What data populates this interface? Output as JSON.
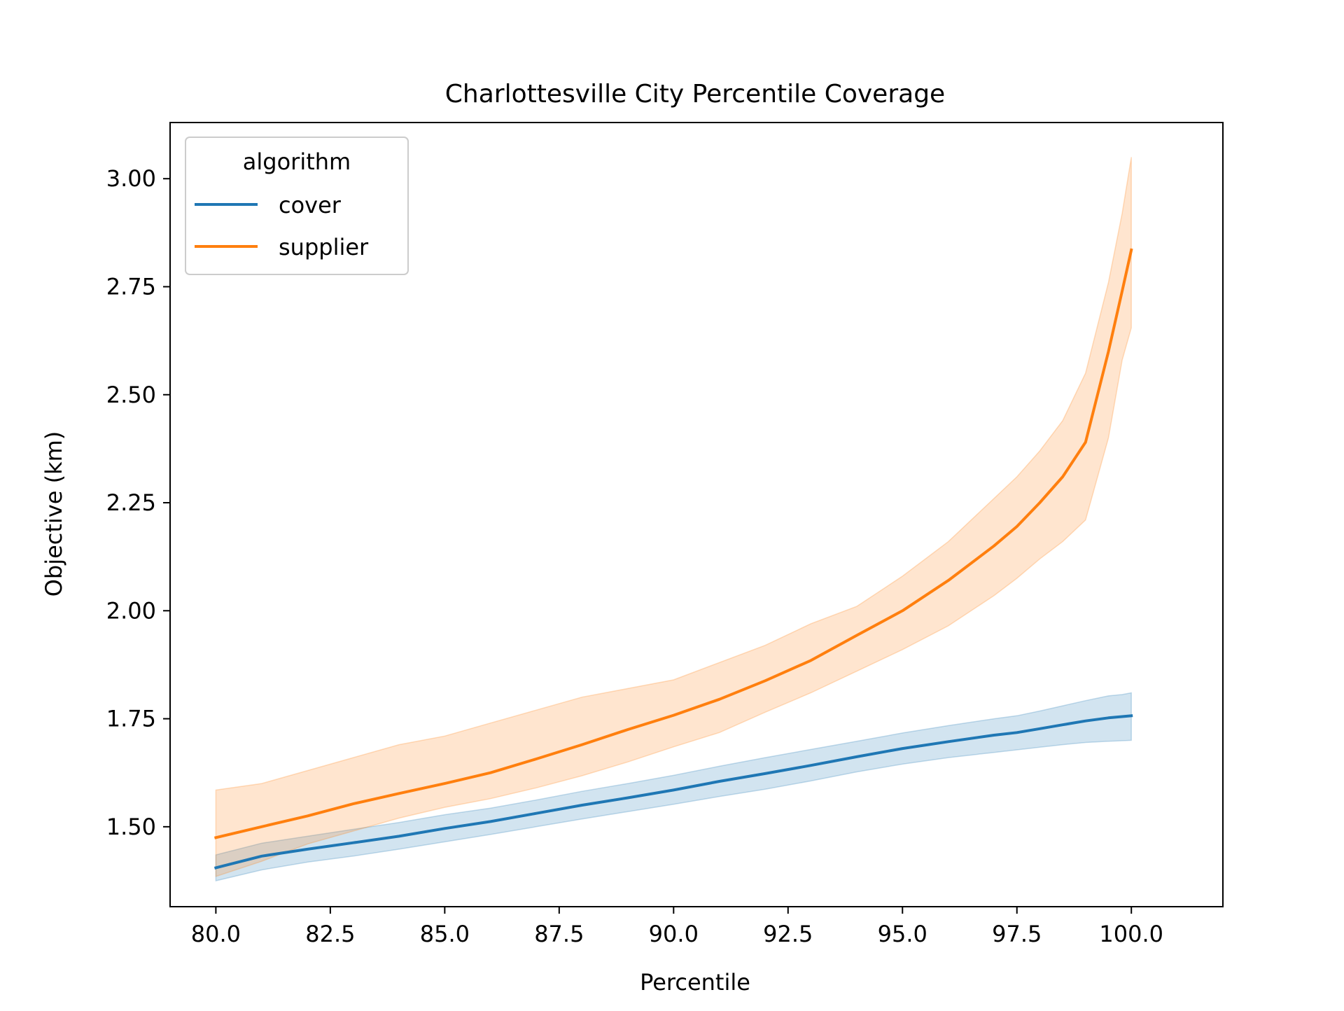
{
  "chart_data": {
    "type": "line",
    "title": "Charlottesville City Percentile Coverage",
    "xlabel": "Percentile",
    "ylabel": "Objective (km)",
    "xlim": [
      79.0,
      102.0
    ],
    "ylim": [
      1.315,
      3.13
    ],
    "xticks": [
      80.0,
      82.5,
      85.0,
      87.5,
      90.0,
      92.5,
      95.0,
      97.5,
      100.0
    ],
    "xtick_labels": [
      "80.0",
      "82.5",
      "85.0",
      "87.5",
      "90.0",
      "92.5",
      "95.0",
      "97.5",
      "100.0"
    ],
    "yticks": [
      1.5,
      1.75,
      2.0,
      2.25,
      2.5,
      2.75,
      3.0
    ],
    "ytick_labels": [
      "1.50",
      "1.75",
      "2.00",
      "2.25",
      "2.50",
      "2.75",
      "3.00"
    ],
    "grid": false,
    "legend": {
      "title": "algorithm",
      "placement": "top-left"
    },
    "x": [
      80,
      81,
      82,
      83,
      84,
      85,
      86,
      87,
      88,
      89,
      90,
      91,
      92,
      93,
      94,
      95,
      96,
      97,
      97.5,
      98,
      98.5,
      99,
      99.5,
      99.8,
      100
    ],
    "series": [
      {
        "name": "cover",
        "color": "#1f77b4",
        "values": [
          1.405,
          1.432,
          1.448,
          1.463,
          1.478,
          1.496,
          1.512,
          1.531,
          1.55,
          1.567,
          1.585,
          1.605,
          1.623,
          1.642,
          1.662,
          1.681,
          1.697,
          1.712,
          1.718,
          1.727,
          1.736,
          1.745,
          1.752,
          1.755,
          1.757
        ],
        "lower": [
          1.375,
          1.4,
          1.418,
          1.432,
          1.448,
          1.465,
          1.482,
          1.5,
          1.518,
          1.535,
          1.552,
          1.57,
          1.587,
          1.606,
          1.627,
          1.645,
          1.66,
          1.672,
          1.678,
          1.684,
          1.69,
          1.695,
          1.698,
          1.699,
          1.7
        ],
        "upper": [
          1.435,
          1.462,
          1.478,
          1.494,
          1.51,
          1.528,
          1.543,
          1.562,
          1.582,
          1.6,
          1.619,
          1.64,
          1.66,
          1.679,
          1.698,
          1.717,
          1.734,
          1.75,
          1.757,
          1.768,
          1.78,
          1.792,
          1.803,
          1.806,
          1.81
        ]
      },
      {
        "name": "supplier",
        "color": "#ff7f0e",
        "values": [
          1.475,
          1.5,
          1.525,
          1.553,
          1.577,
          1.6,
          1.625,
          1.657,
          1.69,
          1.725,
          1.758,
          1.795,
          1.838,
          1.885,
          1.943,
          2.0,
          2.07,
          2.15,
          2.195,
          2.25,
          2.31,
          2.39,
          2.6,
          2.74,
          2.835
        ],
        "lower": [
          1.385,
          1.42,
          1.46,
          1.49,
          1.52,
          1.545,
          1.565,
          1.59,
          1.618,
          1.65,
          1.685,
          1.718,
          1.765,
          1.81,
          1.86,
          1.91,
          1.965,
          2.035,
          2.075,
          2.12,
          2.16,
          2.21,
          2.4,
          2.58,
          2.655
        ],
        "upper": [
          1.585,
          1.6,
          1.63,
          1.66,
          1.69,
          1.71,
          1.74,
          1.77,
          1.8,
          1.82,
          1.84,
          1.88,
          1.92,
          1.97,
          2.01,
          2.08,
          2.16,
          2.26,
          2.31,
          2.37,
          2.44,
          2.55,
          2.76,
          2.92,
          3.05
        ]
      }
    ]
  }
}
